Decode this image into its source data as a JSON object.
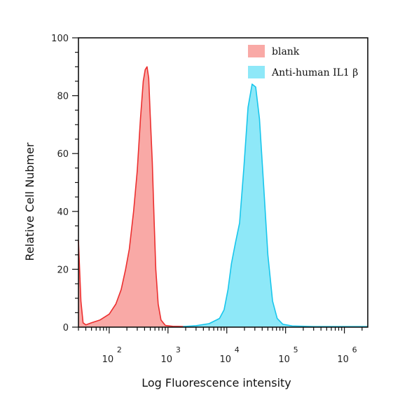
{
  "chart_data": {
    "type": "area",
    "title": "",
    "xlabel": "Log Fluorescence intensity",
    "ylabel": "Relative Cell Nubmer",
    "x_scale": "log",
    "xlim": [
      30,
      2500000
    ],
    "ylim": [
      0,
      100
    ],
    "x_ticks": [
      {
        "base": "10",
        "exp": "2",
        "value": 100
      },
      {
        "base": "10",
        "exp": "3",
        "value": 1000
      },
      {
        "base": "10",
        "exp": "4",
        "value": 10000
      },
      {
        "base": "10",
        "exp": "5",
        "value": 100000
      },
      {
        "base": "10",
        "exp": "6",
        "value": 1000000
      }
    ],
    "y_ticks": [
      "0",
      "20",
      "40",
      "60",
      "80",
      "100"
    ],
    "legend_position": "top-right",
    "series": [
      {
        "name": "blank",
        "fill": "#f9a9a6",
        "stroke": "#ec2f2f",
        "points": [
          [
            30,
            30
          ],
          [
            33,
            9
          ],
          [
            36,
            1.5
          ],
          [
            40,
            0.8
          ],
          [
            50,
            1.5
          ],
          [
            70,
            2.5
          ],
          [
            100,
            4.5
          ],
          [
            130,
            8
          ],
          [
            160,
            13
          ],
          [
            190,
            20
          ],
          [
            220,
            27
          ],
          [
            260,
            40
          ],
          [
            300,
            54
          ],
          [
            340,
            72
          ],
          [
            380,
            85
          ],
          [
            410,
            89
          ],
          [
            440,
            90
          ],
          [
            470,
            86
          ],
          [
            500,
            73
          ],
          [
            540,
            57
          ],
          [
            580,
            37
          ],
          [
            620,
            20
          ],
          [
            680,
            8
          ],
          [
            760,
            2.5
          ],
          [
            900,
            0.6
          ],
          [
            1200,
            0.3
          ],
          [
            2000,
            0.2
          ]
        ]
      },
      {
        "name": "Anti-human IL1 β",
        "fill": "#8ee8f8",
        "stroke": "#18c6ec",
        "points": [
          [
            1800,
            0.2
          ],
          [
            3000,
            0.5
          ],
          [
            5000,
            1.2
          ],
          [
            7500,
            3
          ],
          [
            9000,
            6
          ],
          [
            10500,
            13
          ],
          [
            12000,
            22
          ],
          [
            14000,
            29
          ],
          [
            16500,
            36
          ],
          [
            19500,
            55
          ],
          [
            23000,
            76
          ],
          [
            27000,
            84
          ],
          [
            31000,
            83
          ],
          [
            36000,
            72
          ],
          [
            42000,
            50
          ],
          [
            50000,
            25
          ],
          [
            60000,
            9
          ],
          [
            72000,
            3
          ],
          [
            90000,
            1
          ],
          [
            130000,
            0.4
          ],
          [
            300000,
            0.2
          ],
          [
            2500000,
            0.2
          ]
        ]
      }
    ]
  }
}
